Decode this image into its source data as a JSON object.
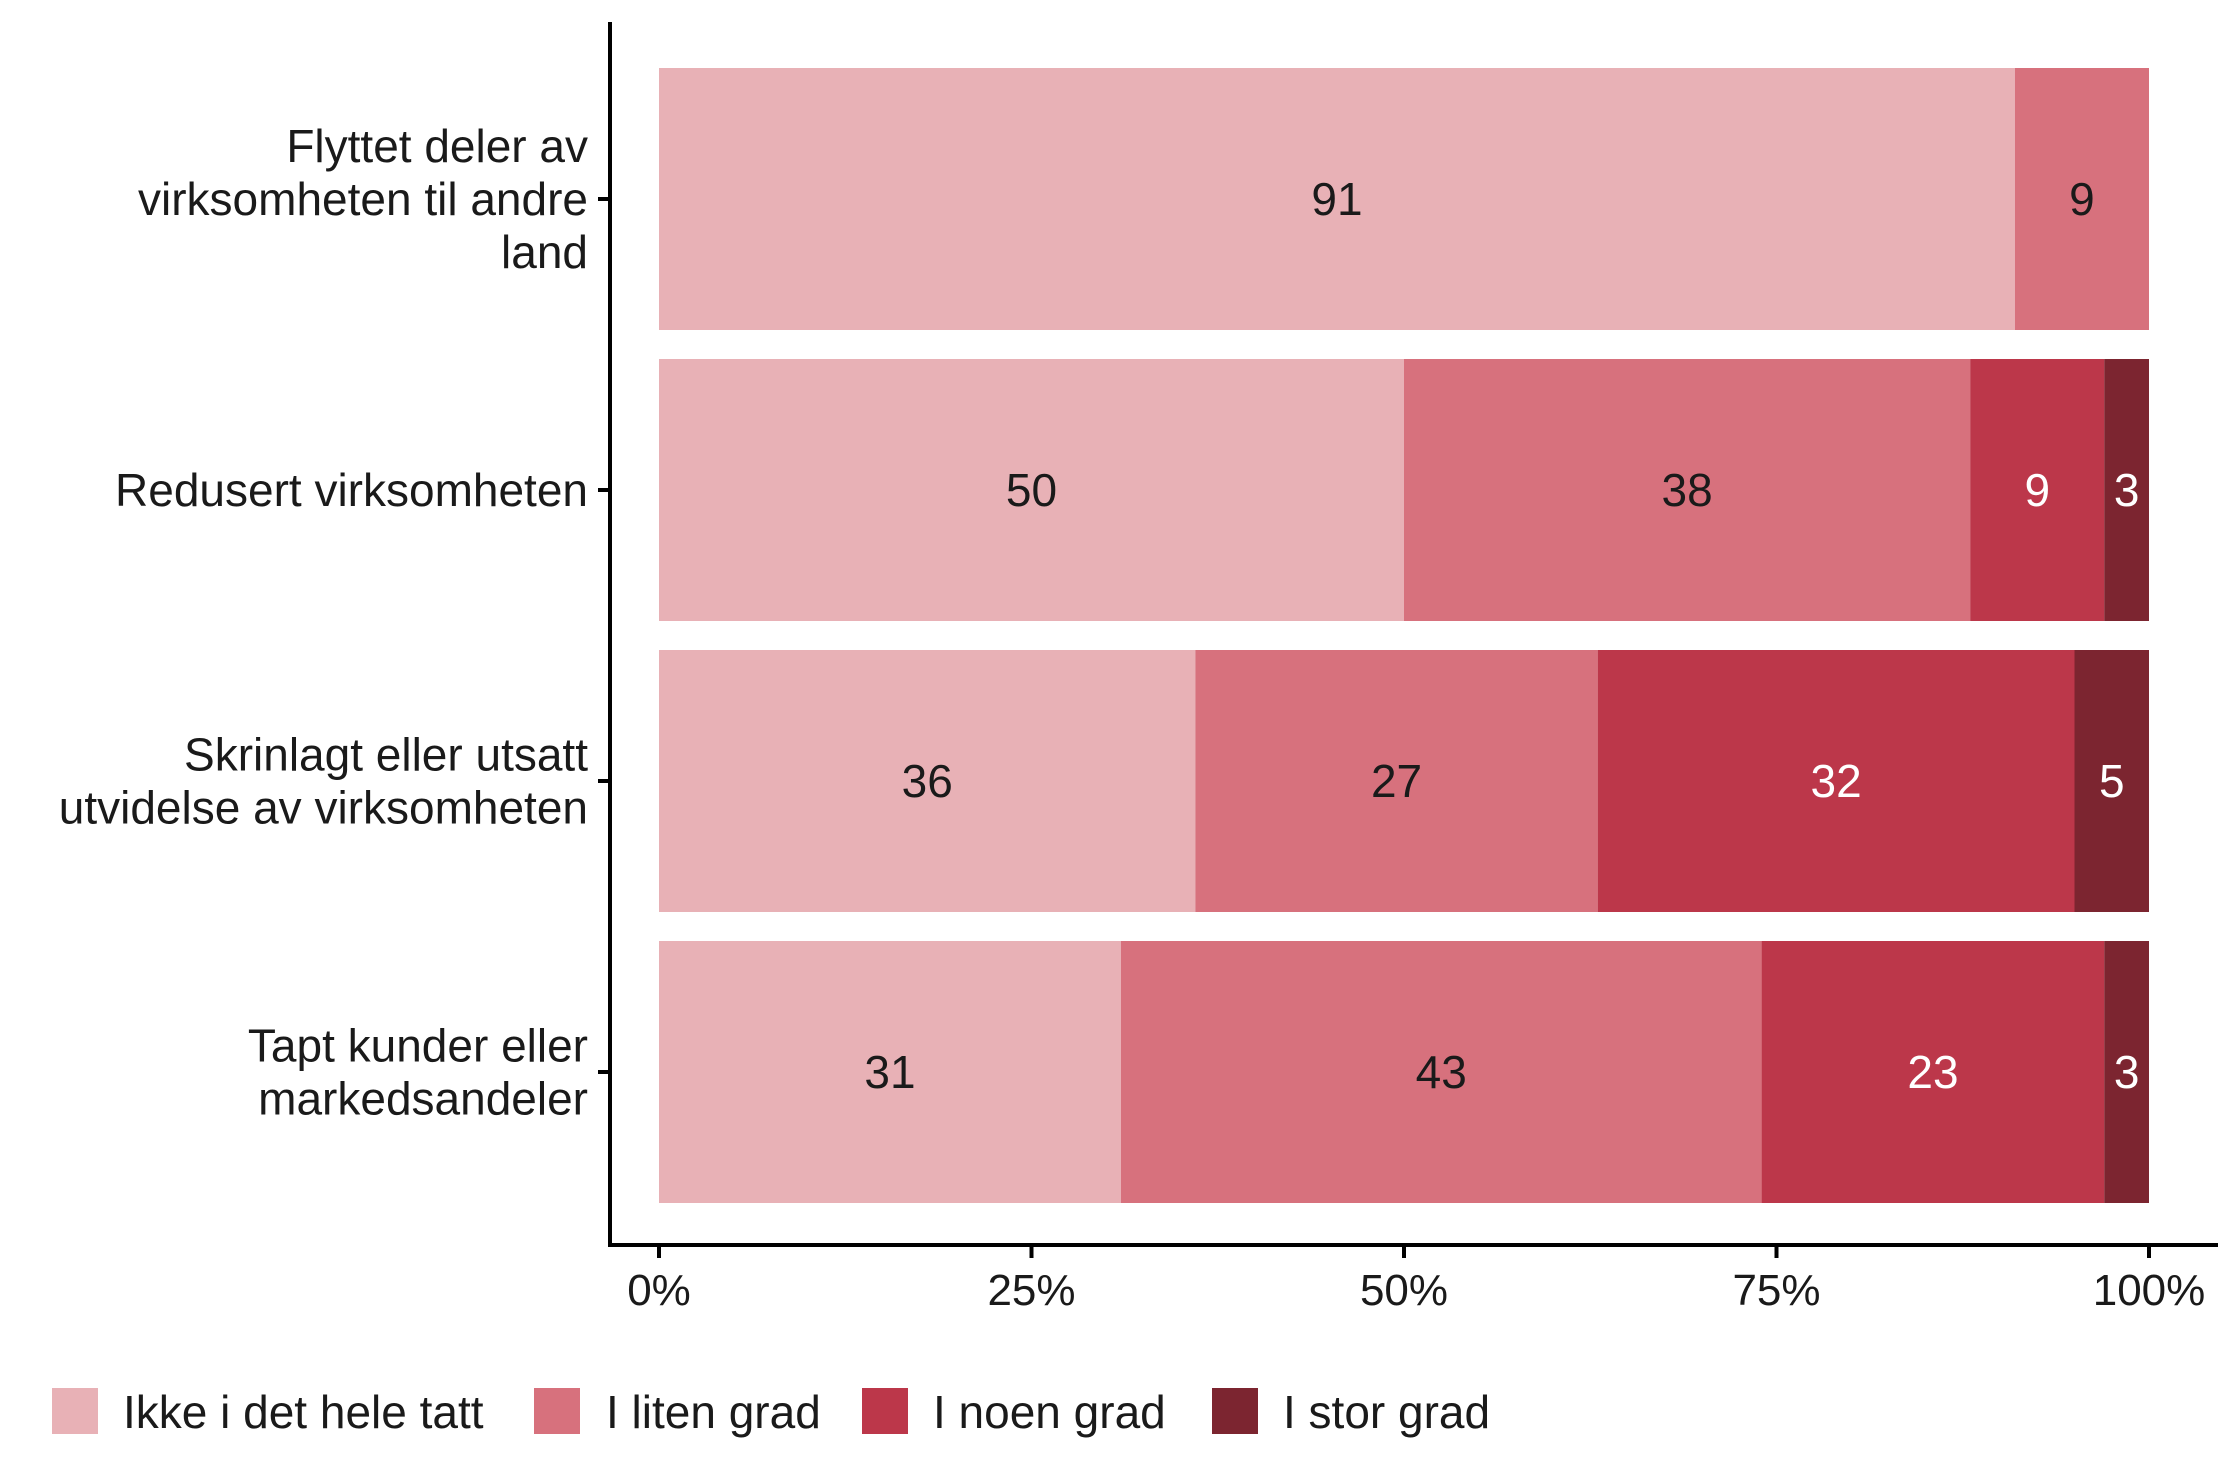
{
  "chart_data": {
    "type": "bar",
    "orientation": "horizontal",
    "stacked": true,
    "categories": [
      [
        "Flyttet deler av",
        "virksomheten til andre",
        "land"
      ],
      [
        "Redusert virksomheten"
      ],
      [
        "Skrinlagt eller utsatt",
        "utvidelse av virksomheten"
      ],
      [
        "Tapt kunder eller",
        "markedsandeler"
      ]
    ],
    "series": [
      {
        "name": "Ikke i det hele tatt",
        "color": "#E8B1B6",
        "values": [
          91,
          50,
          36,
          31
        ],
        "labels": [
          "91",
          "50",
          "36",
          "31"
        ],
        "label_color": "#1a1a1a"
      },
      {
        "name": "I liten grad",
        "color": "#D7717D",
        "values": [
          9,
          38,
          27,
          43
        ],
        "labels": [
          "9",
          "38",
          "27",
          "43"
        ],
        "label_color": "#1a1a1a"
      },
      {
        "name": "I noen grad",
        "color": "#BC374A",
        "values": [
          0,
          9,
          32,
          23
        ],
        "labels": [
          "",
          "9",
          "32",
          "23"
        ],
        "label_color": "#ffffff"
      },
      {
        "name": "I stor grad",
        "color": "#7C2530",
        "values": [
          0,
          3,
          5,
          3
        ],
        "labels": [
          "",
          "3",
          "5",
          "3"
        ],
        "label_color": "#ffffff"
      }
    ],
    "x_ticks": [
      "0%",
      "25%",
      "50%",
      "75%",
      "100%"
    ],
    "xlim": [
      0,
      100
    ],
    "grid": false,
    "legend_position": "bottom"
  }
}
